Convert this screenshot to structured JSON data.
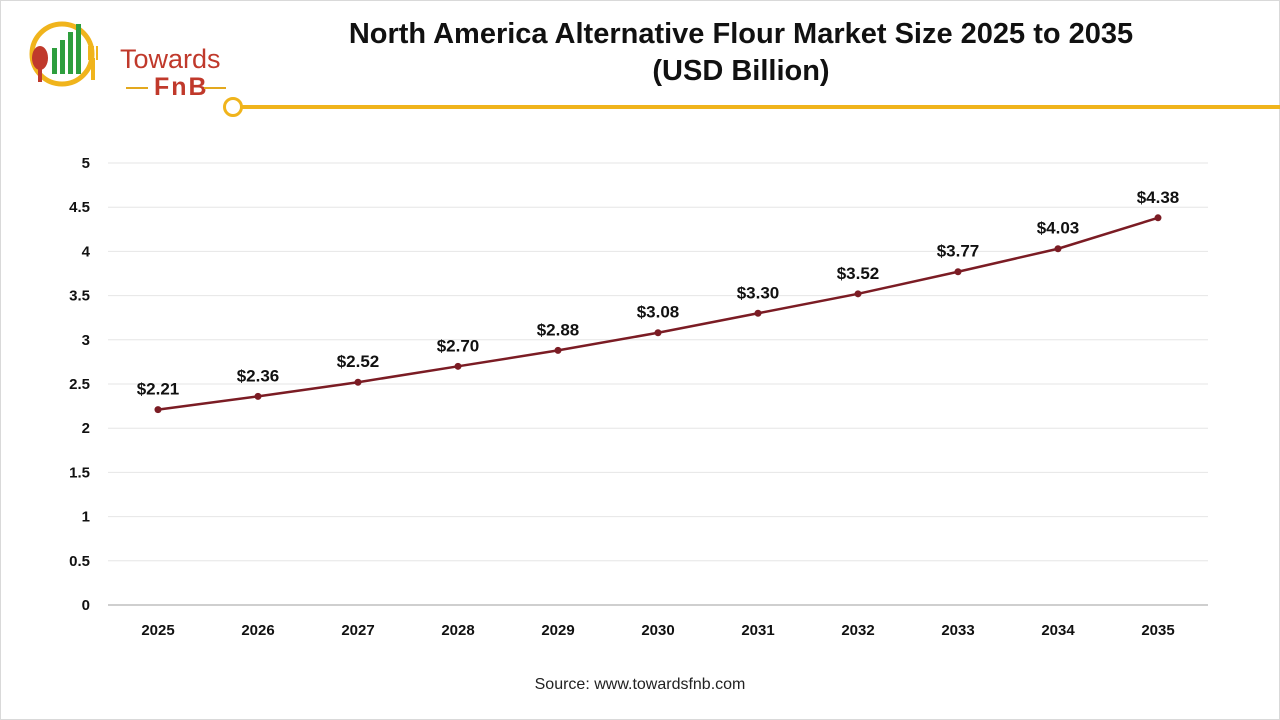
{
  "brand": {
    "line1": "Towards",
    "line2": "FnB",
    "colors": {
      "red": "#c0392b",
      "green": "#2e9e3e",
      "gold": "#f0b41c"
    }
  },
  "title": {
    "line1": "North America Alternative Flour Market Size 2025 to 2035",
    "line2": "(USD Billion)"
  },
  "source": "Source: www.towardsfnb.com",
  "chart_data": {
    "type": "line",
    "x": [
      "2025",
      "2026",
      "2027",
      "2028",
      "2029",
      "2030",
      "2031",
      "2032",
      "2033",
      "2034",
      "2035"
    ],
    "series": [
      {
        "values": [
          2.21,
          2.36,
          2.52,
          2.7,
          2.88,
          3.08,
          3.3,
          3.52,
          3.77,
          4.03,
          4.38
        ],
        "labels": [
          "$2.21",
          "$2.36",
          "$2.52",
          "$2.70",
          "$2.88",
          "$3.08",
          "$3.30",
          "$3.52",
          "$3.77",
          "$4.03",
          "$4.38"
        ],
        "color": "#7b1c24"
      }
    ],
    "ylim": [
      0,
      5
    ],
    "yticks": [
      "0",
      "0.5",
      "1",
      "1.5",
      "2",
      "2.5",
      "3",
      "3.5",
      "4",
      "4.5",
      "5"
    ],
    "grid": true,
    "legend": "none"
  }
}
